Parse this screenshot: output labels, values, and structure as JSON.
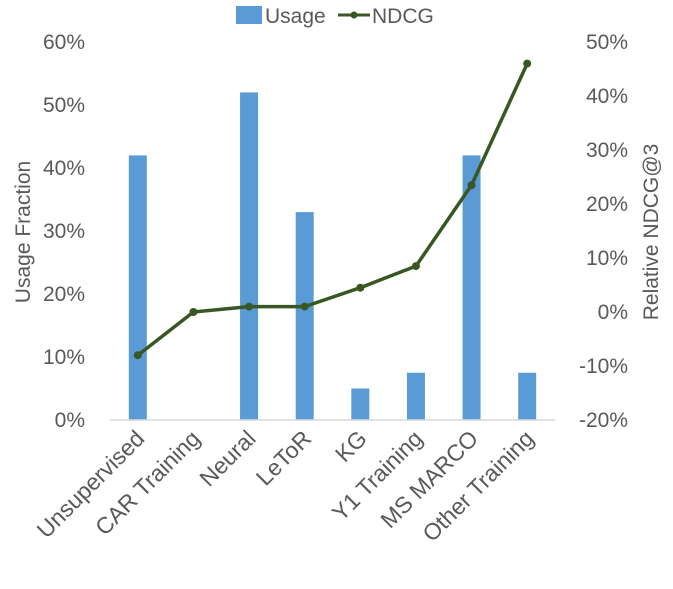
{
  "chart_data": {
    "type": "bar",
    "categories": [
      "Unsupervised",
      "CAR Training",
      "Neural",
      "LeToR",
      "KG",
      "Y1 Training",
      "MS MARCO",
      "Other Training"
    ],
    "series": [
      {
        "name": "Usage",
        "type": "bar",
        "axis": "left",
        "color": "#5b9bd5",
        "values": [
          42,
          0,
          52,
          33,
          5,
          7.5,
          42,
          7.5
        ]
      },
      {
        "name": "NDCG",
        "type": "line",
        "axis": "right",
        "color": "#385723",
        "values": [
          -8,
          0,
          1,
          1,
          4.5,
          8.5,
          23.5,
          46
        ]
      }
    ],
    "y_left": {
      "label": "Usage Fraction",
      "range": [
        0,
        60
      ],
      "ticks": [
        0,
        10,
        20,
        30,
        40,
        50,
        60
      ],
      "tick_labels": [
        "0%",
        "10%",
        "20%",
        "30%",
        "40%",
        "50%",
        "60%"
      ]
    },
    "y_right": {
      "label": "Relative NDCG@3",
      "range": [
        -20,
        50
      ],
      "ticks": [
        -20,
        -10,
        0,
        10,
        20,
        30,
        40,
        50
      ],
      "tick_labels": [
        "-20%",
        "-10%",
        "0%",
        "10%",
        "20%",
        "30%",
        "40%",
        "50%"
      ]
    },
    "grid": false,
    "legend_position": "top-center"
  }
}
